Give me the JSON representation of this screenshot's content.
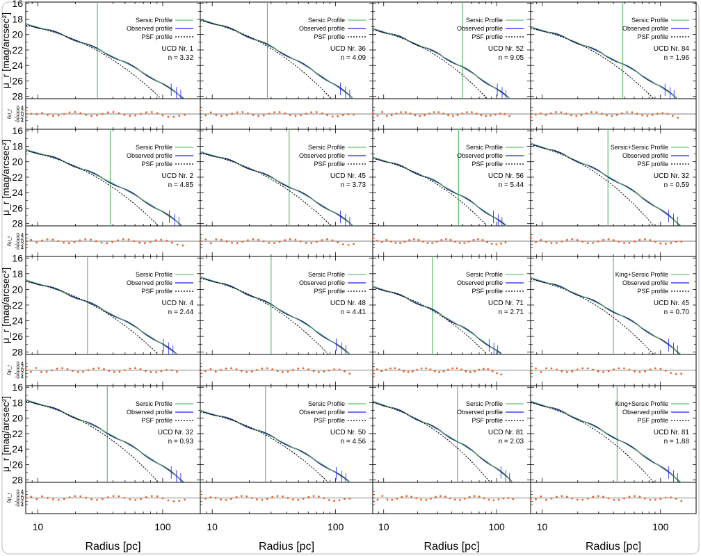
{
  "figure": {
    "xlabel": "Radius [pc]",
    "ylabel_main": "μ_r [mag/arcsec²]",
    "ylabel_resid": "Δμ_r",
    "x_ticks": [
      10,
      100
    ],
    "y_ticks_main": [
      16,
      18,
      20,
      22,
      24,
      26,
      28
    ],
    "y_ticks_resid": [
      "0.4",
      "0.2",
      "0.0",
      "-0.2",
      "-0.4"
    ],
    "colors": {
      "sersic": "#5fbf6f",
      "observed": "#1a1aff",
      "psf": "#000000",
      "residual": "#e8642a",
      "profile_dark": "#333333"
    },
    "legend_entries": [
      "Sersic Profile",
      "Observed profile",
      "PSF profile"
    ]
  },
  "chart_data": [
    {
      "type": "line",
      "row": 0,
      "col": 0,
      "label": "UCD Nr. 1",
      "n": "n = 3.32",
      "model": "Sersic Profile",
      "mu0": 18.6,
      "r_end": 150,
      "psf_end": 100,
      "vline": 30
    },
    {
      "type": "line",
      "row": 0,
      "col": 1,
      "label": "UCD Nr. 36",
      "n": "n = 4.09",
      "model": "Sersic Profile",
      "mu0": 18.0,
      "r_end": 140,
      "psf_end": 95,
      "vline": 28
    },
    {
      "type": "line",
      "row": 0,
      "col": 2,
      "label": "UCD Nr. 52",
      "n": "n = 9.05",
      "model": "Sersic Profile",
      "mu0": 19.2,
      "r_end": 130,
      "psf_end": 85,
      "vline": 50
    },
    {
      "type": "line",
      "row": 0,
      "col": 3,
      "label": "UCD Nr. 84",
      "n": "n = 1.96",
      "model": "Sersic Profile",
      "mu0": 19.0,
      "r_end": 140,
      "psf_end": 90,
      "vline": 48
    },
    {
      "type": "line",
      "row": 1,
      "col": 0,
      "label": "UCD Nr. 2",
      "n": "n = 4.85",
      "model": "Sersic Profile",
      "mu0": 18.4,
      "r_end": 145,
      "psf_end": 95,
      "vline": 38
    },
    {
      "type": "line",
      "row": 1,
      "col": 1,
      "label": "UCD Nr. 45",
      "n": "n = 3.73",
      "model": "Sersic Profile",
      "mu0": 18.7,
      "r_end": 140,
      "psf_end": 95,
      "vline": 42
    },
    {
      "type": "line",
      "row": 1,
      "col": 2,
      "label": "UCD Nr. 56",
      "n": "n = 5.44",
      "model": "Sersic Profile",
      "mu0": 19.4,
      "r_end": 120,
      "psf_end": 85,
      "vline": 46
    },
    {
      "type": "line",
      "row": 1,
      "col": 3,
      "label": "UCD Nr. 32",
      "n": "n = 0.59",
      "model": "Sersic+Sersic Profile",
      "mu0": 17.6,
      "r_end": 150,
      "psf_end": 90,
      "vline": 36
    },
    {
      "type": "line",
      "row": 2,
      "col": 0,
      "label": "UCD Nr. 4",
      "n": "n = 2.44",
      "model": "Sersic Profile",
      "mu0": 18.8,
      "r_end": 130,
      "psf_end": 95,
      "vline": 25
    },
    {
      "type": "line",
      "row": 2,
      "col": 1,
      "label": "UCD Nr. 48",
      "n": "n = 4.41",
      "model": "Sersic Profile",
      "mu0": 18.4,
      "r_end": 130,
      "psf_end": 90,
      "vline": 30
    },
    {
      "type": "line",
      "row": 2,
      "col": 2,
      "label": "UCD Nr. 71",
      "n": "n = 2.71",
      "model": "Sersic Profile",
      "mu0": 19.6,
      "r_end": 110,
      "psf_end": 85,
      "vline": 27
    },
    {
      "type": "line",
      "row": 2,
      "col": 3,
      "label": "UCD Nr. 45",
      "n": "n = 0.70",
      "model": "King+Sersic Profile",
      "mu0": 18.5,
      "r_end": 150,
      "psf_end": 90,
      "vline": 40
    },
    {
      "type": "line",
      "row": 3,
      "col": 0,
      "label": "UCD Nr. 32",
      "n": "n = 0.93",
      "model": "Sersic Profile",
      "mu0": 17.6,
      "r_end": 150,
      "psf_end": 95,
      "vline": 36
    },
    {
      "type": "line",
      "row": 3,
      "col": 1,
      "label": "UCD Nr. 50",
      "n": "n = 4.56",
      "model": "Sersic Profile",
      "mu0": 19.0,
      "r_end": 130,
      "psf_end": 90,
      "vline": 27
    },
    {
      "type": "line",
      "row": 3,
      "col": 2,
      "label": "UCD Nr. 81",
      "n": "n = 2.03",
      "model": "Sersic Profile",
      "mu0": 17.8,
      "r_end": 140,
      "psf_end": 90,
      "vline": 45
    },
    {
      "type": "line",
      "row": 3,
      "col": 3,
      "label": "UCD Nr. 81",
      "n": "n = 1.88",
      "model": "King+Sersic Profile",
      "mu0": 17.8,
      "r_end": 150,
      "psf_end": 90,
      "vline": 43
    }
  ]
}
